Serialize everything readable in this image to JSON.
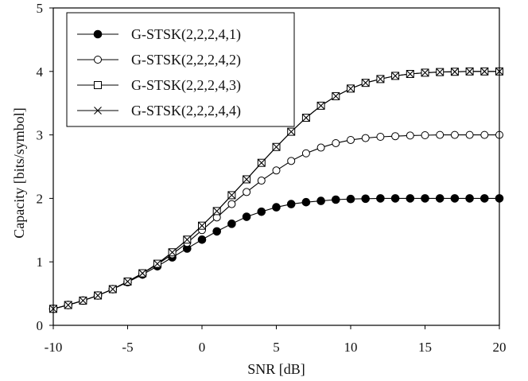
{
  "chart_data": {
    "type": "line",
    "title": "",
    "xlabel": "SNR [dB]",
    "ylabel": "Capacity [bits/symbol]",
    "xlim": [
      -10,
      20
    ],
    "ylim": [
      0,
      5
    ],
    "xticks": [
      -10,
      -5,
      0,
      5,
      10,
      15,
      20
    ],
    "yticks": [
      0,
      1,
      2,
      3,
      4,
      5
    ],
    "grid": false,
    "legend_position": "top-left",
    "x": [
      -10,
      -9,
      -8,
      -7,
      -6,
      -5,
      -4,
      -3,
      -2,
      -1,
      0,
      1,
      2,
      3,
      4,
      5,
      6,
      7,
      8,
      9,
      10,
      11,
      12,
      13,
      14,
      15,
      16,
      17,
      18,
      19,
      20
    ],
    "series": [
      {
        "name": "G-STSK(2,2,2,4,1)",
        "marker": "filled-circle",
        "values": [
          0.26,
          0.32,
          0.39,
          0.47,
          0.57,
          0.68,
          0.8,
          0.93,
          1.07,
          1.21,
          1.35,
          1.48,
          1.6,
          1.71,
          1.79,
          1.86,
          1.91,
          1.94,
          1.96,
          1.98,
          1.99,
          1.995,
          2.0,
          2.0,
          2.0,
          2.0,
          2.0,
          2.0,
          2.0,
          2.0,
          2.0
        ]
      },
      {
        "name": "G-STSK(2,2,2,4,2)",
        "marker": "open-circle",
        "values": [
          0.26,
          0.32,
          0.39,
          0.47,
          0.57,
          0.69,
          0.82,
          0.96,
          1.12,
          1.3,
          1.5,
          1.7,
          1.91,
          2.1,
          2.28,
          2.44,
          2.59,
          2.71,
          2.8,
          2.87,
          2.92,
          2.95,
          2.97,
          2.98,
          2.99,
          2.995,
          3.0,
          3.0,
          3.0,
          3.0,
          3.0
        ]
      },
      {
        "name": "G-STSK(2,2,2,4,3)",
        "marker": "open-square",
        "values": [
          0.26,
          0.32,
          0.39,
          0.47,
          0.57,
          0.69,
          0.82,
          0.97,
          1.15,
          1.35,
          1.57,
          1.8,
          2.05,
          2.3,
          2.56,
          2.81,
          3.05,
          3.27,
          3.46,
          3.61,
          3.73,
          3.82,
          3.88,
          3.93,
          3.96,
          3.98,
          3.99,
          3.995,
          4.0,
          4.0,
          4.0
        ]
      },
      {
        "name": "G-STSK(2,2,2,4,4)",
        "marker": "cross",
        "values": [
          0.26,
          0.32,
          0.39,
          0.47,
          0.57,
          0.69,
          0.82,
          0.97,
          1.15,
          1.35,
          1.57,
          1.8,
          2.05,
          2.3,
          2.56,
          2.81,
          3.05,
          3.27,
          3.46,
          3.61,
          3.73,
          3.82,
          3.88,
          3.93,
          3.96,
          3.98,
          3.99,
          3.995,
          4.0,
          4.0,
          4.0
        ]
      }
    ]
  }
}
